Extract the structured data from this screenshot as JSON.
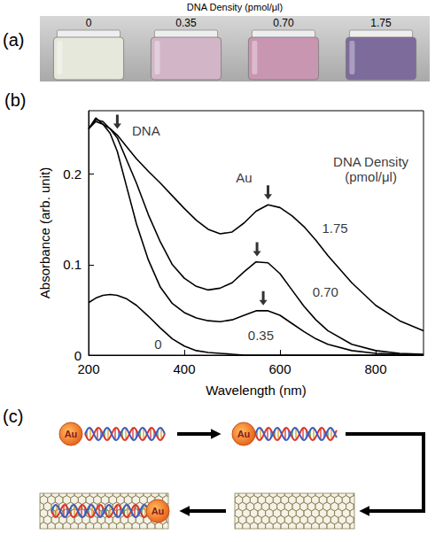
{
  "panel_a": {
    "panel_label": "(a)",
    "title": "DNA Density (pmol/μl)",
    "vials": [
      {
        "label": "0",
        "color": "#e6e8dc"
      },
      {
        "label": "0.35",
        "color": "#d2b6c8"
      },
      {
        "label": "0.70",
        "color": "#c996b2"
      },
      {
        "label": "1.75",
        "color": "#7d6b9c"
      }
    ]
  },
  "chart_data": {
    "type": "line",
    "panel_label": "(b)",
    "x_label": "Wavelength (nm)",
    "y_label": "Absorbance (arb. unit)",
    "x": [
      200,
      215,
      230,
      245,
      260,
      280,
      300,
      325,
      350,
      375,
      400,
      425,
      450,
      475,
      500,
      525,
      550,
      575,
      600,
      625,
      650,
      675,
      700,
      750,
      800,
      850,
      900
    ],
    "series": [
      {
        "name": "0",
        "color": "#000000",
        "label_at": [
          345,
          0.012
        ],
        "values": [
          0.058,
          0.063,
          0.066,
          0.067,
          0.066,
          0.062,
          0.055,
          0.043,
          0.03,
          0.018,
          0.01,
          0.005,
          0.003,
          0.002,
          0.001,
          0,
          0,
          0,
          0,
          0,
          0,
          0,
          0,
          0,
          0,
          0,
          0
        ]
      },
      {
        "name": "0.35",
        "color": "#000000",
        "label_at": [
          560,
          0.022
        ],
        "values": [
          0.25,
          0.258,
          0.255,
          0.245,
          0.225,
          0.185,
          0.145,
          0.105,
          0.075,
          0.057,
          0.047,
          0.041,
          0.038,
          0.037,
          0.039,
          0.044,
          0.049,
          0.049,
          0.044,
          0.035,
          0.026,
          0.018,
          0.012,
          0.005,
          0.002,
          0.001,
          0
        ]
      },
      {
        "name": "0.70",
        "color": "#000000",
        "label_at": [
          695,
          0.07
        ],
        "values": [
          0.25,
          0.26,
          0.258,
          0.25,
          0.24,
          0.215,
          0.19,
          0.155,
          0.125,
          0.1,
          0.085,
          0.076,
          0.072,
          0.074,
          0.08,
          0.092,
          0.103,
          0.102,
          0.09,
          0.072,
          0.054,
          0.039,
          0.027,
          0.012,
          0.005,
          0.002,
          0.001
        ]
      },
      {
        "name": "1.75",
        "color": "#000000",
        "label_at": [
          715,
          0.14
        ],
        "values": [
          0.25,
          0.262,
          0.255,
          0.25,
          0.243,
          0.23,
          0.217,
          0.203,
          0.19,
          0.176,
          0.162,
          0.149,
          0.139,
          0.134,
          0.136,
          0.146,
          0.159,
          0.166,
          0.163,
          0.154,
          0.142,
          0.127,
          0.11,
          0.08,
          0.055,
          0.038,
          0.027
        ]
      }
    ],
    "annotations": [
      {
        "text": "DNA",
        "x": 320,
        "y": 0.248
      },
      {
        "text": "Au",
        "x": 525,
        "y": 0.196
      },
      {
        "text": "DNA Density (pmol/μl)",
        "x": 790,
        "y": 0.205
      }
    ],
    "arrows": [
      {
        "x": 260,
        "y": 0.25
      },
      {
        "x": 575,
        "y": 0.172
      },
      {
        "x": 552,
        "y": 0.109
      },
      {
        "x": 565,
        "y": 0.055
      }
    ],
    "xlim": [
      200,
      900
    ],
    "xticks": [
      200,
      400,
      600,
      800
    ],
    "ylim": [
      0,
      0.27
    ],
    "yticks": [
      0,
      0.1,
      0.2
    ],
    "grid": false
  },
  "panel_c": {
    "panel_label": "(c)",
    "particle_label": "Au"
  }
}
